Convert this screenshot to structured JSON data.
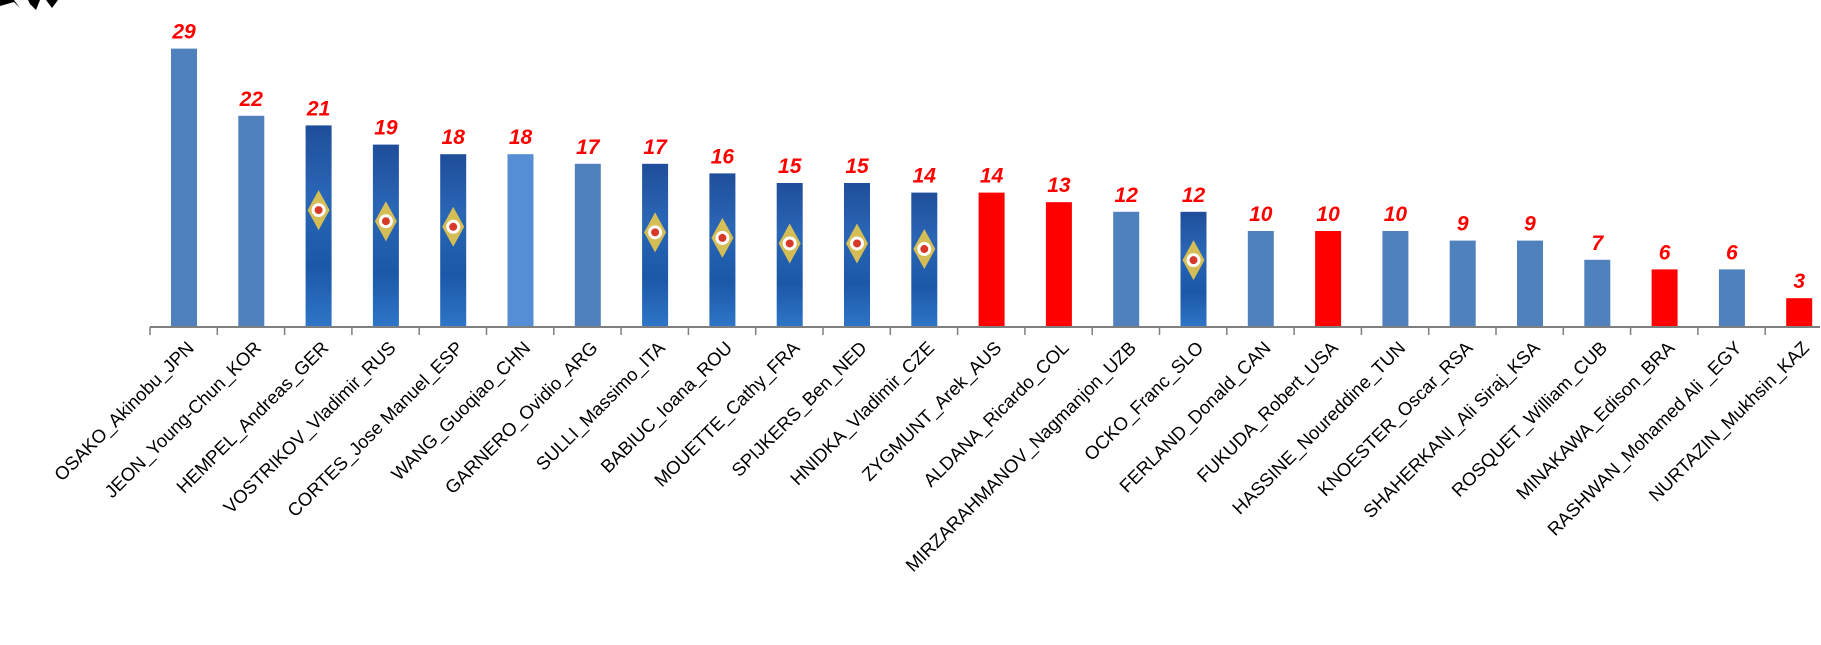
{
  "chart_data": {
    "type": "bar",
    "title": "",
    "xlabel": "",
    "ylabel": "",
    "ylim": [
      0,
      30
    ],
    "grid": false,
    "legend": "none",
    "categories": [
      "OSAKO_Akinobu_JPN",
      "JEON_Young-Chun_KOR",
      "HEMPEL_Andreas_GER",
      "VOSTRIKOV_Vladimir_RUS",
      "CORTES_Jose Manuel_ESP",
      "WANG_Guoqiao_CHN",
      "GARNERO_Ovidio_ARG",
      "SULLI_Massimo_ITA",
      "BABIUC_Ioana_ROU",
      "MOUETTE_Cathy_FRA",
      "SPIJKERS_Ben_NED",
      "HNIDKA_Vladimir_CZE",
      "ZYGMUNT_Arek_AUS",
      "ALDANA_Ricardo_COL",
      "MIRZARAHMANOV_Nagmanjon_UZB",
      "OCKO_Franc_SLO",
      "FERLAND_Donald_CAN",
      "FUKUDA_Robert_USA",
      "HASSINE_Noureddine_TUN",
      "KNOESTER_Oscar_RSA",
      "SHAHERKANI_Ali Siraj_KSA",
      "ROSQUET_William_CUB",
      "MINAKAWA_Edison_BRA",
      "RASHWAN_Mohamed Ali _EGY",
      "NURTAZIN_Mukhsin_KAZ"
    ],
    "values": [
      29,
      22,
      21,
      19,
      18,
      18,
      17,
      17,
      16,
      15,
      15,
      14,
      14,
      13,
      12,
      12,
      10,
      10,
      10,
      9,
      9,
      7,
      6,
      6,
      3
    ],
    "bar_styles": [
      "blue",
      "blue",
      "logo",
      "logo",
      "logo",
      "lightblue",
      "blue",
      "logo",
      "logo",
      "logo",
      "logo",
      "logo",
      "red",
      "red",
      "blue",
      "logo",
      "blue",
      "red",
      "blue",
      "blue",
      "blue",
      "blue",
      "red",
      "blue",
      "red"
    ]
  },
  "colors": {
    "blue": "#4f81bd",
    "lightblue": "#558ed5",
    "red": "#ff0000",
    "logo_dark": "#1f4e9a",
    "logo_light": "#2e75c8",
    "label": "#ff0000",
    "axis": "#7f7f7f"
  }
}
